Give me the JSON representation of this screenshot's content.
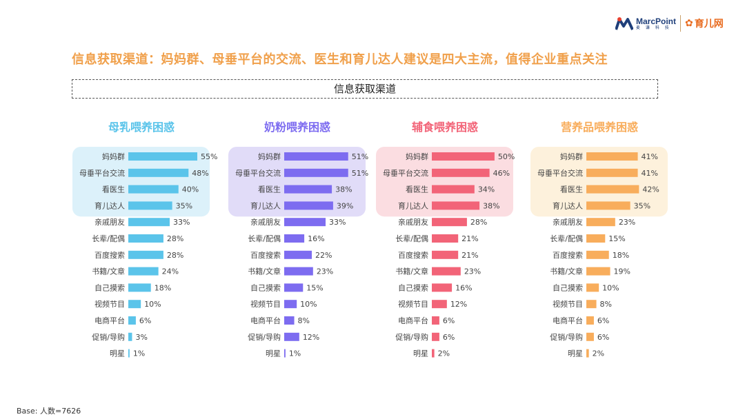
{
  "logo": {
    "brand": "MarcPoint",
    "brand_sub": "麦 谦 科 技",
    "partner": "育儿网"
  },
  "headline": "信息获取渠道：妈妈群、母垂平台的交流、医生和育儿达人建议是四大主流，值得企业重点关注",
  "section_title": "信息获取渠道",
  "footnote": "Base: 人数=7626",
  "chart_data": {
    "type": "bar",
    "categories": [
      "妈妈群",
      "母垂平台交流",
      "看医生",
      "育儿达人",
      "亲戚朋友",
      "长辈/配偶",
      "百度搜索",
      "书籍/文章",
      "自己摸索",
      "视频节目",
      "电商平台",
      "促销/导购",
      "明星"
    ],
    "highlighted_top": 4,
    "panels": [
      {
        "title": "母乳喂养困惑",
        "color": "#5bc4ea",
        "highlight_bg": "#dcf1fa",
        "values": [
          55,
          48,
          40,
          35,
          33,
          28,
          28,
          24,
          18,
          10,
          6,
          3,
          1
        ]
      },
      {
        "title": "奶粉喂养困惑",
        "color": "#7d6cf0",
        "highlight_bg": "#e1dcf8",
        "values": [
          51,
          51,
          38,
          39,
          33,
          16,
          22,
          23,
          15,
          10,
          8,
          12,
          1
        ]
      },
      {
        "title": "辅食喂养困惑",
        "color": "#f26478",
        "highlight_bg": "#fbdde1",
        "values": [
          50,
          46,
          34,
          38,
          28,
          21,
          21,
          23,
          16,
          12,
          6,
          6,
          2
        ]
      },
      {
        "title": "营养品喂养困惑",
        "color": "#f8ad5c",
        "highlight_bg": "#fdf1dc",
        "values": [
          41,
          41,
          42,
          35,
          23,
          15,
          18,
          19,
          10,
          8,
          6,
          6,
          2
        ]
      }
    ],
    "value_suffix": "%"
  }
}
